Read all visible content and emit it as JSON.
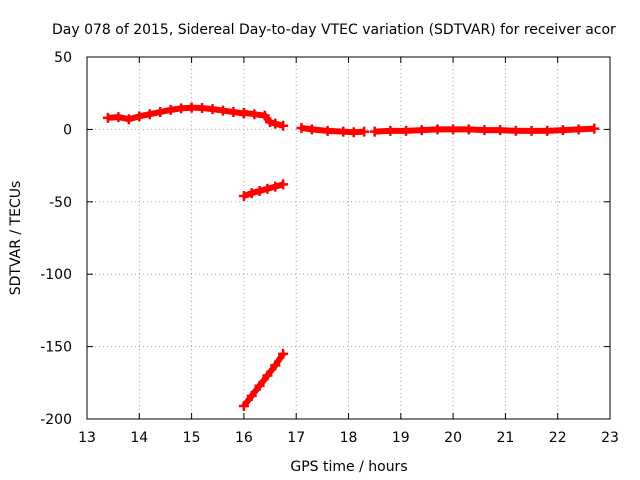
{
  "chart_data": {
    "type": "scatter",
    "title": "Day 078 of 2015, Sidereal Day-to-day VTEC variation (SDTVAR) for receiver acor",
    "xlabel": "GPS time / hours",
    "ylabel": "SDTVAR / TECUs",
    "xlim": [
      13,
      23
    ],
    "ylim": [
      -200,
      50
    ],
    "x_ticks": [
      "13",
      "14",
      "15",
      "16",
      "17",
      "18",
      "19",
      "20",
      "21",
      "22",
      "23"
    ],
    "y_ticks": [
      "50",
      "0",
      "-50",
      "-100",
      "-150",
      "-200"
    ],
    "grid": true,
    "marker": "plus",
    "colors": {
      "series": "#ff0000",
      "frame": "#000000",
      "grid": "#a0a0a0"
    },
    "series": [
      {
        "name": "main-arc-1",
        "x": [
          13.4,
          13.6,
          13.8,
          14.0,
          14.2,
          14.4,
          14.6,
          14.8,
          15.0,
          15.2,
          15.4,
          15.6,
          15.8,
          16.0
        ],
        "y": [
          8,
          8.5,
          7,
          9,
          10.5,
          12,
          13.5,
          14.5,
          15,
          14.8,
          14,
          13,
          12,
          11
        ]
      },
      {
        "name": "main-arc-2",
        "x": [
          16.0,
          16.2,
          16.4,
          16.5,
          16.6,
          16.75
        ],
        "y": [
          11.5,
          10.5,
          9.5,
          5,
          4,
          2.5
        ]
      },
      {
        "name": "main-arc-3",
        "x": [
          17.1,
          17.3,
          17.6,
          17.9,
          18.1,
          18.3
        ],
        "y": [
          1,
          0,
          -1,
          -1.5,
          -2,
          -1.5
        ]
      },
      {
        "name": "main-arc-4",
        "x": [
          18.5,
          18.8,
          19.1,
          19.4,
          19.7,
          20.0,
          20.3,
          20.6,
          20.9,
          21.2,
          21.5,
          21.8,
          22.1,
          22.4,
          22.7
        ],
        "y": [
          -1.5,
          -1,
          -1,
          -0.5,
          0,
          0,
          0,
          -0.5,
          -0.5,
          -1,
          -1,
          -1,
          -0.5,
          0,
          0.5
        ]
      },
      {
        "name": "segment-mid",
        "x": [
          16.0,
          16.15,
          16.3,
          16.45,
          16.6,
          16.75
        ],
        "y": [
          -46,
          -44,
          -42.5,
          -41,
          -39.5,
          -38
        ]
      },
      {
        "name": "segment-low",
        "x": [
          16.0,
          16.15,
          16.3,
          16.45,
          16.6,
          16.75
        ],
        "y": [
          -191,
          -184,
          -177,
          -170,
          -163,
          -155
        ]
      }
    ]
  }
}
